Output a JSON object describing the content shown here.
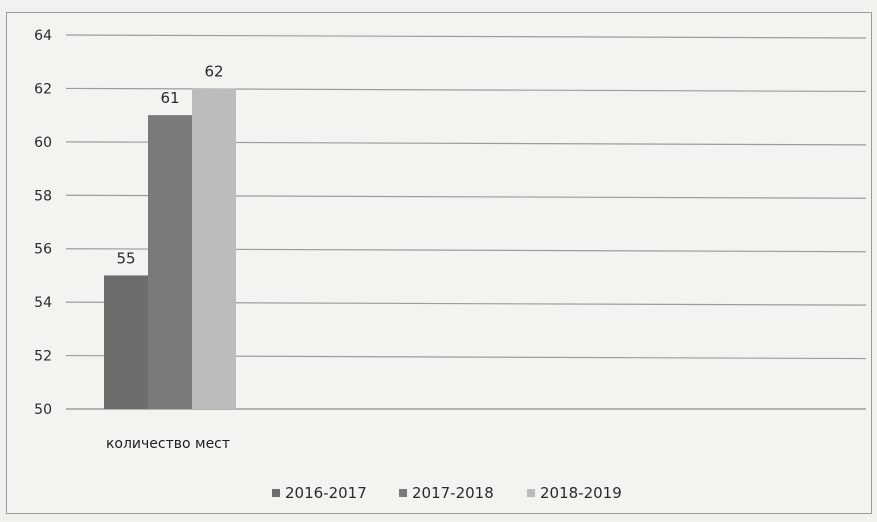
{
  "chart_data": {
    "type": "bar",
    "categories": [
      "количество мест"
    ],
    "series": [
      {
        "name": "2016-2017",
        "values": [
          55
        ],
        "color": "#6e6d6b"
      },
      {
        "name": "2017-2018",
        "values": [
          61
        ],
        "color": "#7b7a78"
      },
      {
        "name": "2018-2019",
        "values": [
          62
        ],
        "color": "#bdbcba"
      }
    ],
    "yticks": [
      "50",
      "52",
      "54",
      "56",
      "58",
      "60",
      "62",
      "64"
    ],
    "ylim": [
      50,
      64
    ],
    "data_labels": [
      "55",
      "61",
      "62"
    ],
    "grid": true,
    "legend_position": "bottom",
    "title": "",
    "xlabel": "",
    "ylabel": ""
  }
}
